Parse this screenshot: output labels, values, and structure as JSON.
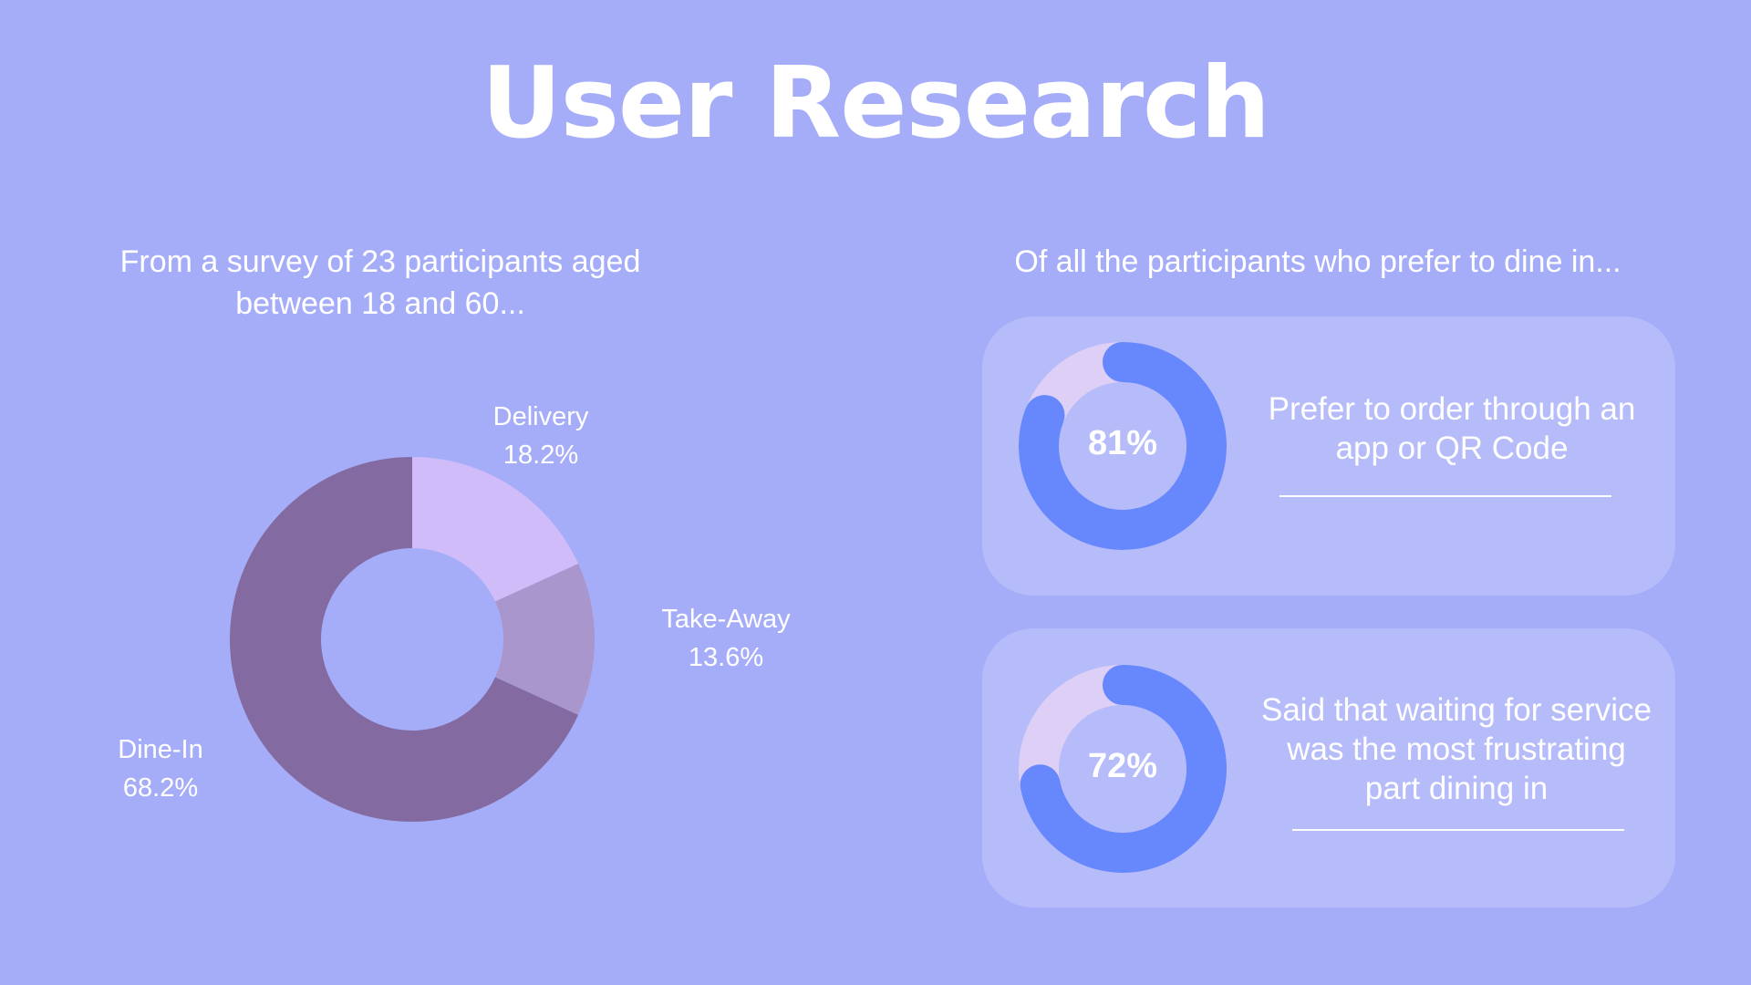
{
  "title": "User Research",
  "left_intro": "From a survey of 23 participants aged between 18 and 60...",
  "right_intro": "Of all the participants who prefer to dine in...",
  "colors": {
    "background": "#a6adf8",
    "card": "#b6bbfa",
    "dine_in": "#836ba1",
    "delivery": "#cfbcf9",
    "take_away": "#a996cd",
    "ring_fill": "#6787fd",
    "ring_track": "#ddcff5",
    "text": "#ffffff"
  },
  "chart_data": [
    {
      "type": "pie",
      "hole": true,
      "title": "",
      "categories": [
        "Delivery",
        "Take-Away",
        "Dine-In"
      ],
      "values": [
        18.2,
        13.6,
        68.2
      ],
      "value_labels": [
        "18.2%",
        "13.6%",
        "68.2%"
      ],
      "colors": [
        "#cfbcf9",
        "#a996cd",
        "#836ba1"
      ]
    },
    {
      "type": "pie",
      "hole": true,
      "title": "",
      "values": [
        81
      ],
      "value_label": "81%",
      "caption": "Prefer to order through an app or QR Code"
    },
    {
      "type": "pie",
      "hole": true,
      "title": "",
      "values": [
        72
      ],
      "value_label": "72%",
      "caption": "Said that waiting for service was the most frustrating part dining in"
    }
  ]
}
